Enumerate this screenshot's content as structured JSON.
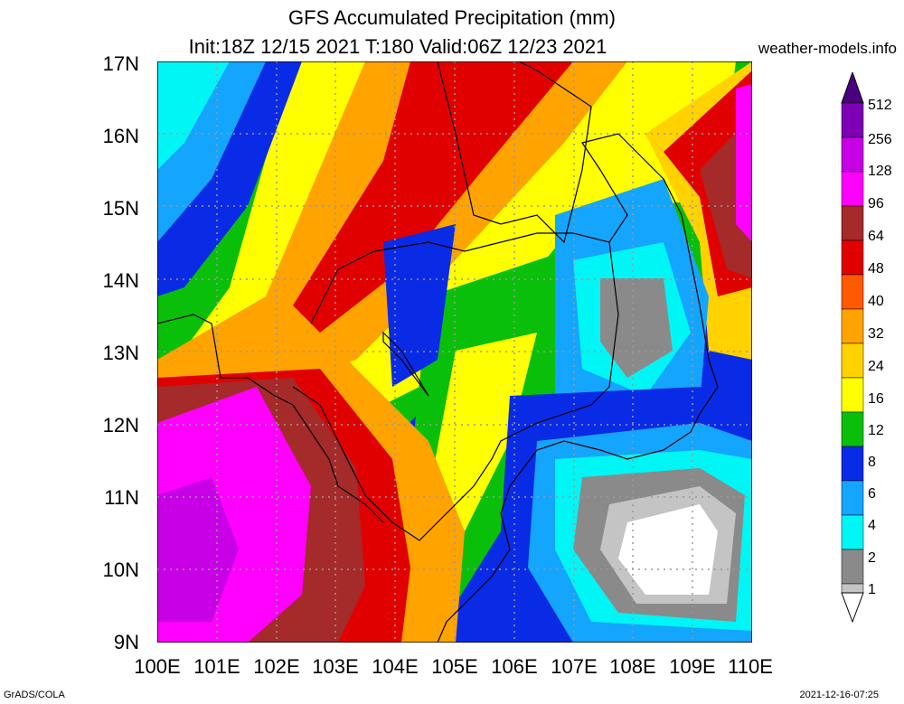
{
  "title": "GFS Accumulated Precipitation (mm)",
  "subtitle": "Init:18Z 12/15 2021 T:180 Valid:06Z 12/23 2021",
  "site": "weather-models.info",
  "footer_left": "GrADS/COLA",
  "footer_right": "2021-12-16-07:25",
  "axes": {
    "lat_labels": [
      "17N",
      "16N",
      "15N",
      "14N",
      "13N",
      "12N",
      "11N",
      "10N",
      "9N"
    ],
    "lon_labels": [
      "100E",
      "101E",
      "102E",
      "103E",
      "104E",
      "105E",
      "106E",
      "107E",
      "108E",
      "109E",
      "110E"
    ]
  },
  "colorbar": {
    "levels": [
      "512",
      "256",
      "128",
      "96",
      "64",
      "48",
      "40",
      "32",
      "24",
      "16",
      "12",
      "8",
      "6",
      "4",
      "2",
      "1"
    ],
    "colors": {
      "c1": "#ebebeb",
      "c2": "#c4c4c4",
      "c4": "#8a8a8a",
      "c6": "#00f5f5",
      "c8": "#14a5ff",
      "c12": "#0a2be6",
      "c16": "#0abf0a",
      "c24": "#ffff00",
      "c32": "#ffd200",
      "c40": "#ffa300",
      "c48": "#ff5a00",
      "c64": "#e10000",
      "c96": "#a52a2a",
      "c128": "#ff00ff",
      "c256": "#c800e6",
      "c512": "#7d00b4"
    }
  }
}
